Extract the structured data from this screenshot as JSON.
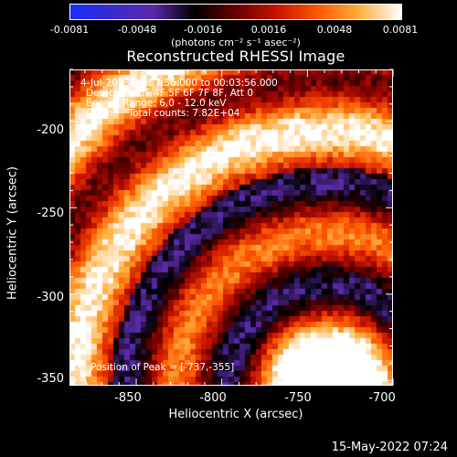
{
  "chart_data": {
    "type": "heatmap",
    "title": "Reconstructed RHESSI Image",
    "xlabel": "Heliocentric X (arcsec)",
    "ylabel": "Heliocentric Y (arcsec)",
    "xlim": [
      -889,
      -700
    ],
    "ylim": [
      -353,
      -170
    ],
    "x_ticks": [
      -850,
      -800,
      -750,
      -700
    ],
    "y_ticks": [
      -200,
      -250,
      -300,
      -350
    ],
    "colorbar": {
      "range": [
        -0.0081,
        0.0081
      ],
      "ticks": [
        "-0.0081",
        "-0.0048",
        "-0.0016",
        "0.0016",
        "0.0048",
        "0.0081"
      ],
      "units": "(photons cm⁻² s⁻¹ asec⁻²)",
      "colors": [
        "#1a2fff",
        "#3a2ad0",
        "#5a2aa8",
        "#000000",
        "#6a0000",
        "#c81400",
        "#ff5a00",
        "#ffb040",
        "#ffffff"
      ]
    },
    "annotations": {
      "time": "4-Jul-2013 23:57:56.000 to 00:03:56.000",
      "detectors": "Detectors: 3F 4F 5F 6F 7F 8F, Att 0",
      "energy": "Energy Range: 6.0 - 12.0 keV",
      "clean": "Clean     Total counts: 7.82E+04",
      "peak": "Position of Peak = [-737,-355]"
    },
    "peak_position": [
      -737,
      -355
    ]
  },
  "footer": {
    "date": "15-May-2022 07:24"
  }
}
